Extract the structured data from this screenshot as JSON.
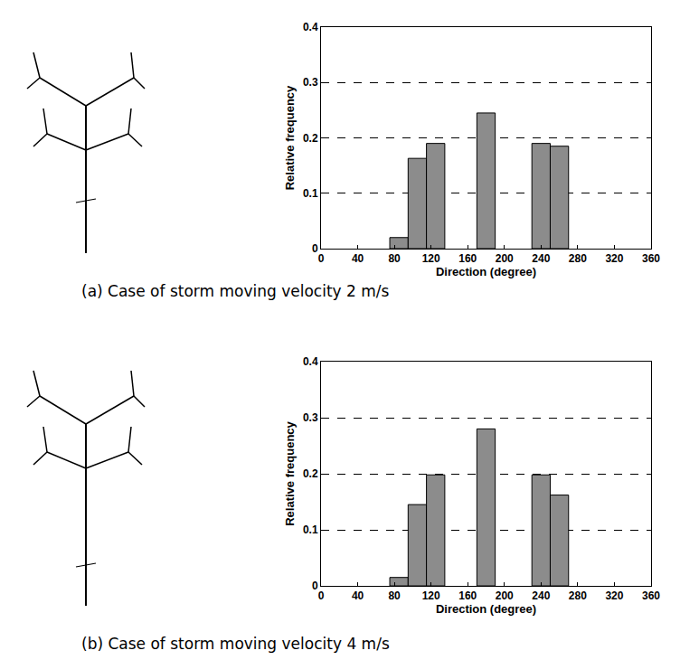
{
  "chart_data": [
    {
      "type": "bar",
      "title": "(a) Case of storm moving velocity 2 m/s",
      "x_label": "Direction (degree)",
      "y_label": "Relative frequency",
      "x": [
        85,
        105,
        125,
        180,
        240,
        260
      ],
      "values": [
        0.02,
        0.163,
        0.19,
        0.245,
        0.19,
        0.185
      ],
      "color": "#8c8c8c",
      "xlim": [
        0,
        360
      ],
      "xticks": [
        0,
        40,
        80,
        120,
        160,
        200,
        240,
        280,
        320,
        360
      ],
      "ylim": [
        0,
        0.4
      ],
      "yticks": [
        0,
        0.1,
        0.2,
        0.3,
        0.4
      ],
      "grid": true
    },
    {
      "type": "bar",
      "title": "(b) Case of storm moving velocity 4 m/s",
      "x_label": "Direction (degree)",
      "y_label": "Relative frequency",
      "x": [
        85,
        105,
        125,
        180,
        240,
        260
      ],
      "values": [
        0.015,
        0.145,
        0.198,
        0.28,
        0.198,
        0.162
      ],
      "color": "#8c8c8c",
      "xlim": [
        0,
        360
      ],
      "xticks": [
        0,
        40,
        80,
        120,
        160,
        200,
        240,
        280,
        320,
        360
      ],
      "ylim": [
        0,
        0.4
      ],
      "yticks": [
        0,
        0.1,
        0.2,
        0.3,
        0.4
      ],
      "grid": true
    }
  ]
}
